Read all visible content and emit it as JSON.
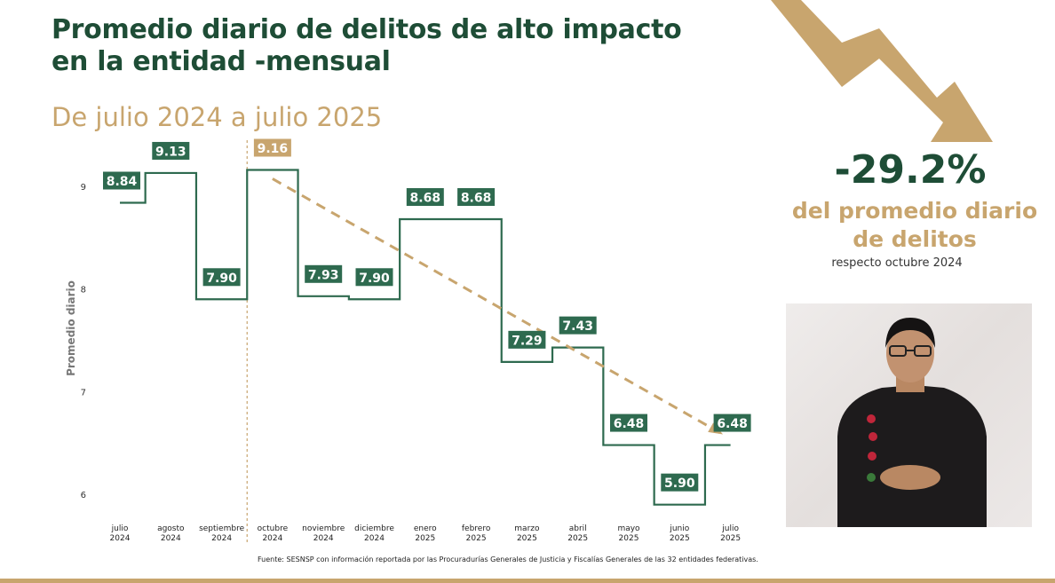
{
  "header": {
    "title_line1": "Promedio diario de delitos de alto impacto",
    "title_line2": "en la entidad -mensual",
    "subtitle": "De julio 2024 a julio 2025"
  },
  "kpi": {
    "value": "-29.2%",
    "label_line1": "del promedio diario",
    "label_line2": "de delitos",
    "note": "respecto octubre 2024"
  },
  "source": "Fuente: SESNSP con información reportada por las Procuradurías Generales de Justicia y Fiscalías Generales de las 32 entidades federativas.",
  "colors": {
    "primary": "#1e4d36",
    "accent": "#c8a56e",
    "series": "#2e6a4f"
  },
  "chart_data": {
    "type": "line",
    "step": true,
    "ylabel": "Promedio diario",
    "ylim": [
      5.6,
      9.4
    ],
    "yticks": [
      6,
      7,
      8,
      9
    ],
    "categories": [
      {
        "month": "julio",
        "year": "2024"
      },
      {
        "month": "agosto",
        "year": "2024"
      },
      {
        "month": "septiembre",
        "year": "2024"
      },
      {
        "month": "octubre",
        "year": "2024"
      },
      {
        "month": "noviembre",
        "year": "2024"
      },
      {
        "month": "diciembre",
        "year": "2024"
      },
      {
        "month": "enero",
        "year": "2025"
      },
      {
        "month": "febrero",
        "year": "2025"
      },
      {
        "month": "marzo",
        "year": "2025"
      },
      {
        "month": "abril",
        "year": "2025"
      },
      {
        "month": "mayo",
        "year": "2025"
      },
      {
        "month": "junio",
        "year": "2025"
      },
      {
        "month": "julio",
        "year": "2025"
      }
    ],
    "values": [
      8.84,
      9.13,
      7.9,
      9.16,
      7.93,
      7.9,
      8.68,
      8.68,
      7.29,
      7.43,
      6.48,
      5.9,
      6.48
    ],
    "labels": [
      "8.84",
      "9.13",
      "7.90",
      "9.16",
      "7.93",
      "7.90",
      "8.68",
      "8.68",
      "7.29",
      "7.43",
      "6.48",
      "5.90",
      "6.48"
    ],
    "highlight_index": 3,
    "reference_line_category": "octubre 2024",
    "trend_line": {
      "from": "octubre 2024",
      "to": "julio 2025",
      "from_value": 9.16,
      "to_value": 6.48,
      "style": "dashed"
    }
  }
}
